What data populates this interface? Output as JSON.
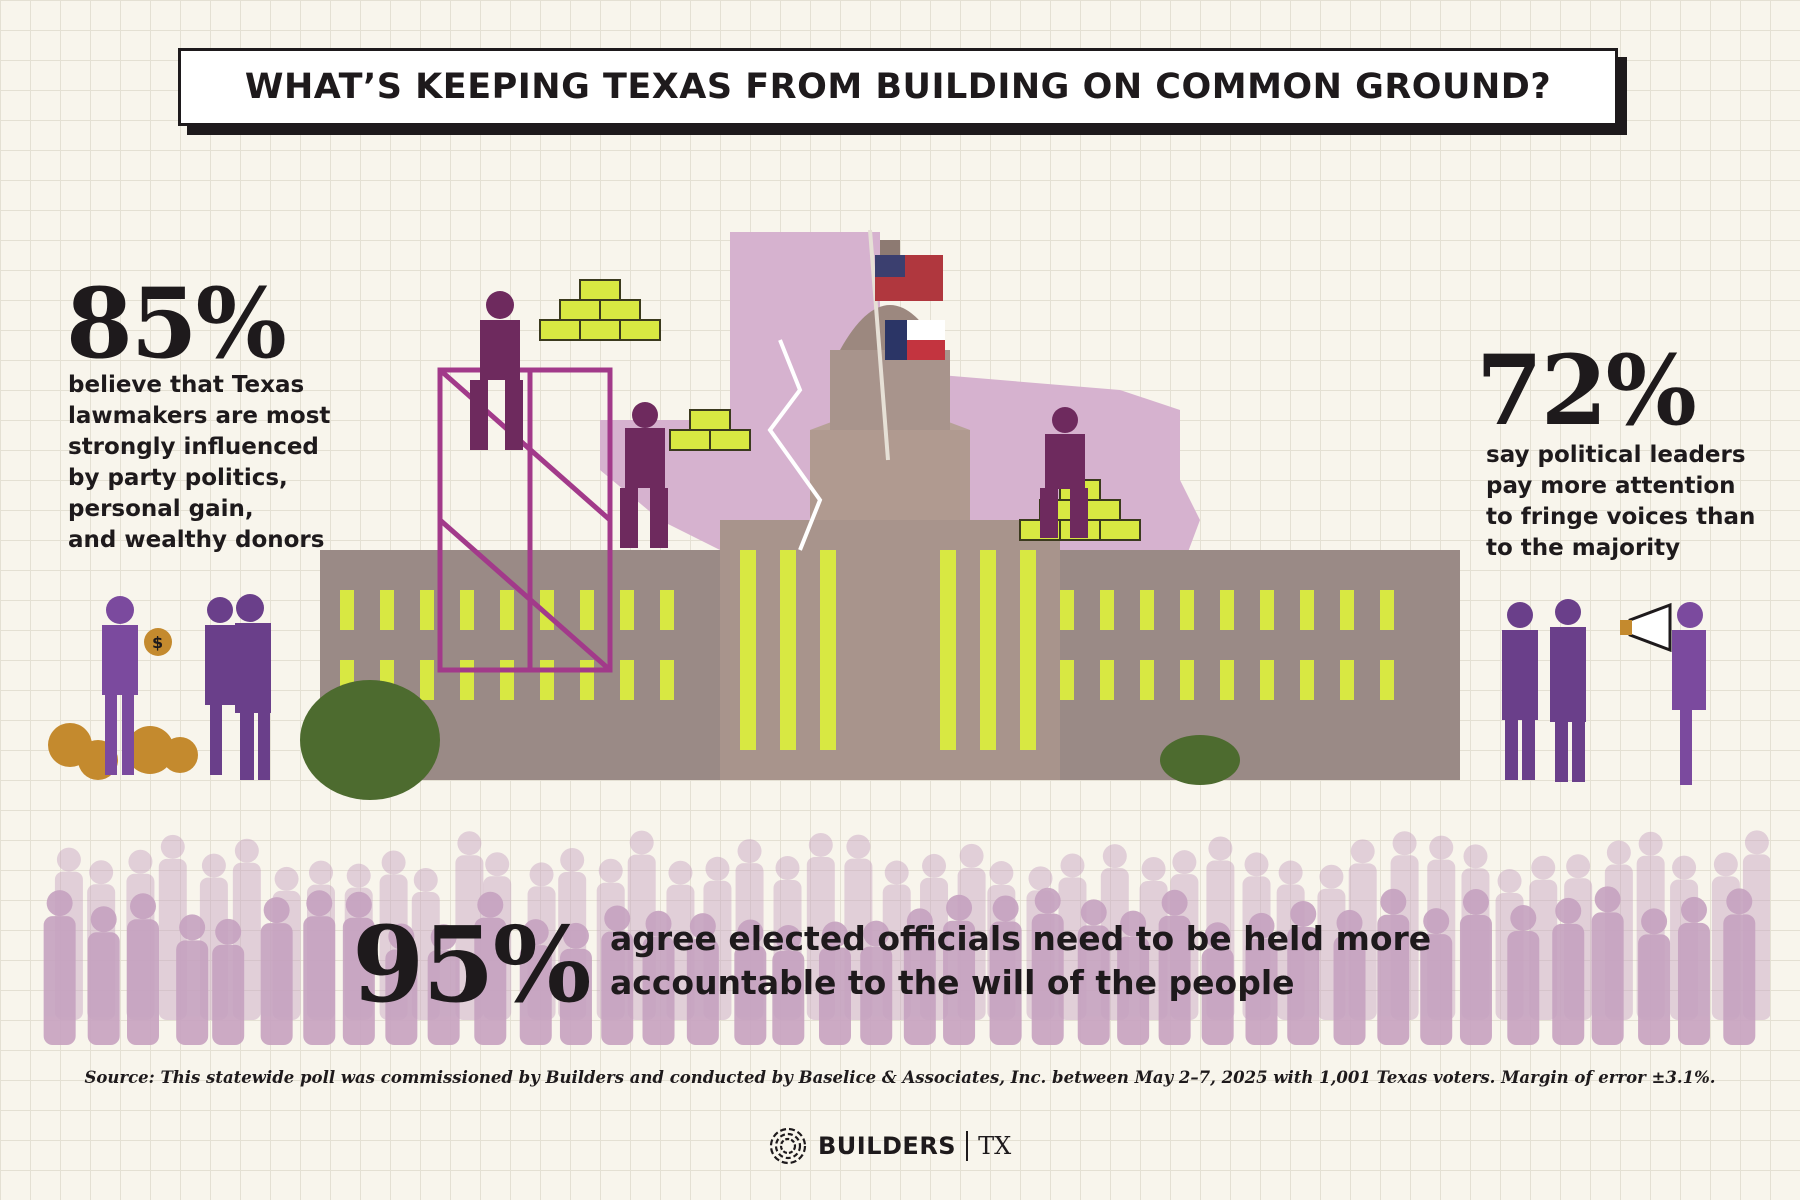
{
  "title": "WHAT’S KEEPING TEXAS FROM BUILDING ON COMMON GROUND?",
  "stats": [
    {
      "value": "85%",
      "text": "believe that Texas lawmakers are most strongly influenced by party politics, personal gain, and wealthy donors"
    },
    {
      "value": "72%",
      "text": "say political leaders pay more attention to fringe voices than to the majority"
    },
    {
      "value": "95%",
      "text": "agree elected officials need to be held more accountable to the will of the people"
    }
  ],
  "stat1_lines": [
    "believe that Texas",
    "lawmakers are most",
    "strongly influenced",
    "by party politics,",
    "personal gain,",
    "and wealthy donors"
  ],
  "stat2_lines": [
    "say political leaders",
    "pay more attention",
    "to fringe voices than",
    "to the majority"
  ],
  "stat3_lines": [
    "agree elected officials need to be held more",
    "accountable to the will of the people"
  ],
  "money_symbol": "$",
  "source": "Source: This statewide poll was commissioned by Builders and conducted by Baselice & Associates, Inc. between May 2–7, 2025 with 1,001 Texas voters. Margin of error ±3.1%.",
  "footer": {
    "brand": "BUILDERS",
    "region": "TX"
  },
  "colors": {
    "background": "#f8f5ec",
    "purple": "#7b4a9e",
    "magenta": "#8e2a6e",
    "lime": "#d8e842",
    "texas_shape": "#d6b2cf",
    "crowd": "#c6a2c0",
    "text": "#1e1a1c"
  }
}
